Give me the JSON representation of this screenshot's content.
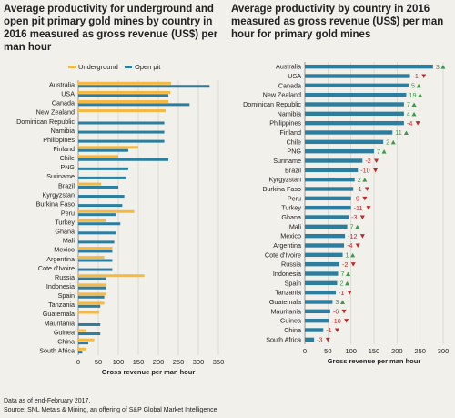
{
  "chart_data": [
    {
      "type": "bar",
      "title": "Average productivity for underground and open pit primary gold mines by country in 2016 measured as gross revenue (US$) per man hour",
      "xlabel": "Gross revenue per man hour",
      "xlim": [
        0,
        350
      ],
      "xticks": [
        0,
        50,
        100,
        150,
        200,
        250,
        300,
        350
      ],
      "orientation": "horizontal",
      "grid": true,
      "legend_placement": "top",
      "categories": [
        "Australia",
        "USA",
        "Canada",
        "New Zealand",
        "Dominican Republic",
        "Namibia",
        "Philippines",
        "Finland",
        "Chile",
        "PNG",
        "Suriname",
        "Brazil",
        "Kyrgyzstan",
        "Burkina Faso",
        "Peru",
        "Turkey",
        "Ghana",
        "Mali",
        "Mexico",
        "Argentina",
        "Cote d'Ivoire",
        "Russia",
        "Indonesia",
        "Spain",
        "Tanzania",
        "Guatemala",
        "Mauritania",
        "Guinea",
        "China",
        "South Africa"
      ],
      "series": [
        {
          "name": "Underground",
          "color": "#f5b942",
          "values": [
            232,
            230,
            225,
            218,
            null,
            null,
            null,
            150,
            100,
            null,
            null,
            57,
            null,
            null,
            140,
            68,
            null,
            null,
            85,
            65,
            null,
            165,
            70,
            70,
            65,
            52,
            null,
            20,
            40,
            20
          ]
        },
        {
          "name": "Open pit",
          "color": "#2c7ea0",
          "values": [
            328,
            225,
            278,
            null,
            215,
            215,
            215,
            125,
            225,
            125,
            120,
            100,
            115,
            110,
            95,
            105,
            95,
            90,
            85,
            85,
            85,
            70,
            70,
            65,
            55,
            null,
            55,
            55,
            25,
            10
          ]
        }
      ]
    },
    {
      "type": "bar",
      "title": "Average productivity by country in 2016 measured as gross revenue (US$) per man hour for primary gold mines",
      "xlabel": "Gross revenue per man hour",
      "xlim": [
        0,
        300
      ],
      "xticks": [
        0,
        50,
        100,
        150,
        200,
        250,
        300
      ],
      "orientation": "horizontal",
      "grid": true,
      "categories": [
        "Australia",
        "USA",
        "Canada",
        "New Zealand",
        "Dominican Republic",
        "Namibia",
        "Philippines",
        "Finland",
        "Chile",
        "PNG",
        "Suriname",
        "Brazil",
        "Kyrgyzstan",
        "Burkina Faso",
        "Peru",
        "Turkey",
        "Ghana",
        "Mali",
        "Mexico",
        "Argentina",
        "Cote d'Ivoire",
        "Russia",
        "Indonesia",
        "Spain",
        "Tanzania",
        "Guatemala",
        "Mauritania",
        "Guinea",
        "China",
        "South Africa"
      ],
      "values": [
        278,
        228,
        225,
        220,
        215,
        215,
        215,
        190,
        170,
        150,
        125,
        115,
        108,
        105,
        100,
        100,
        95,
        92,
        87,
        85,
        82,
        75,
        72,
        70,
        67,
        60,
        55,
        52,
        40,
        20
      ],
      "color": "#2c7ea0",
      "rank_changes": [
        {
          "label": "3",
          "dir": "up"
        },
        {
          "label": "-1",
          "dir": "down"
        },
        {
          "label": "5",
          "dir": "up"
        },
        {
          "label": "19",
          "dir": "up"
        },
        {
          "label": "7",
          "dir": "up"
        },
        {
          "label": "4",
          "dir": "up"
        },
        {
          "label": "-4",
          "dir": "down"
        },
        {
          "label": "11",
          "dir": "up"
        },
        {
          "label": "2",
          "dir": "up"
        },
        {
          "label": "7",
          "dir": "up"
        },
        {
          "label": "-2",
          "dir": "down"
        },
        {
          "label": "-10",
          "dir": "down"
        },
        {
          "label": "2",
          "dir": "up"
        },
        {
          "label": "-1",
          "dir": "down"
        },
        {
          "label": "-9",
          "dir": "down"
        },
        {
          "label": "-11",
          "dir": "down"
        },
        {
          "label": "-3",
          "dir": "down"
        },
        {
          "label": "7",
          "dir": "up"
        },
        {
          "label": "-12",
          "dir": "down"
        },
        {
          "label": "-4",
          "dir": "down"
        },
        {
          "label": "1",
          "dir": "up"
        },
        {
          "label": "-2",
          "dir": "down"
        },
        {
          "label": "7",
          "dir": "up"
        },
        {
          "label": "2",
          "dir": "up"
        },
        {
          "label": "-1",
          "dir": "down"
        },
        {
          "label": "3",
          "dir": "up"
        },
        {
          "label": "-6",
          "dir": "down"
        },
        {
          "label": "-10",
          "dir": "down"
        },
        {
          "label": "-1",
          "dir": "down"
        },
        {
          "label": "-3",
          "dir": "down"
        }
      ],
      "up_color": "#3a9a4a",
      "down_color": "#c0282d"
    }
  ],
  "footer": {
    "note": "Data as of end-February 2017.",
    "source": "Source: SNL Metals & Mining, an offering of S&P Global Market Intelligence"
  }
}
